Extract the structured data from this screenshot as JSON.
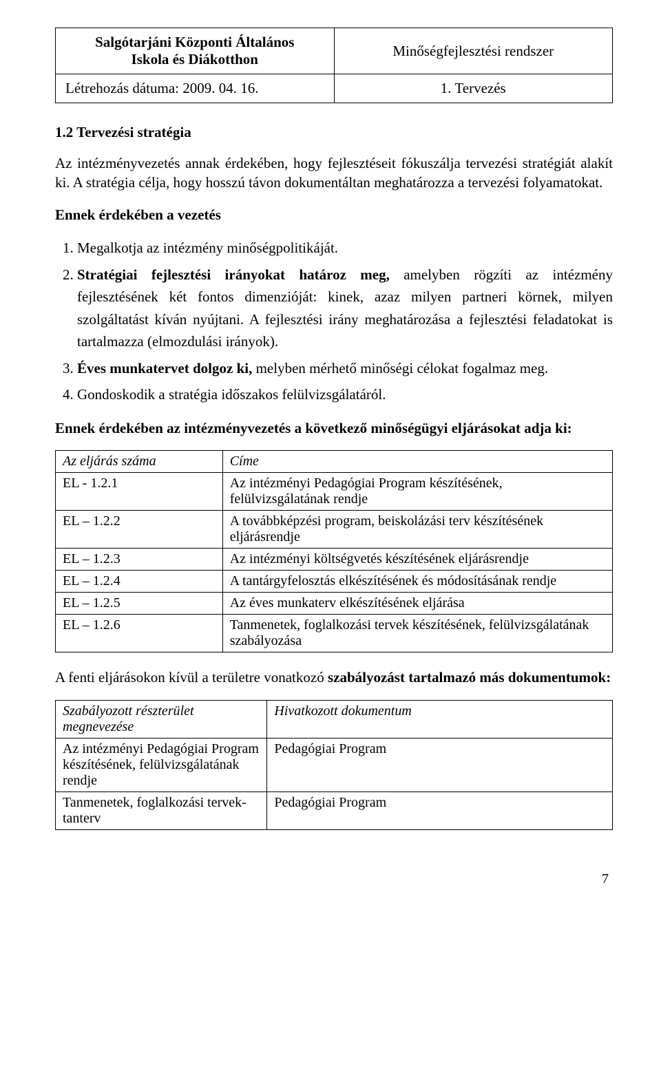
{
  "header": {
    "school_line1": "Salgótarjáni Központi Általános",
    "school_line2": "Iskola és Diákotthon",
    "system": "Minőségfejlesztési rendszer",
    "date_label": "Létrehozás dátuma: 2009. 04. 16.",
    "chapter": "1. Tervezés"
  },
  "section_title": "1.2 Tervezési stratégia",
  "intro_p1": "Az intézményvezetés annak érdekében, hogy fejlesztéseit fókuszálja tervezési stratégiát alakít ki. A stratégia célja, hogy hosszú távon dokumentáltan meghatározza a tervezési folyamatokat.",
  "lead1": "Ennek érdekében a vezetés",
  "list_items": [
    "Megalkotja az intézmény minőségpolitikáját.",
    "Stratégiai fejlesztési irányokat határoz meg, amelyben rögzíti az intézmény fejlesztésének két fontos dimenzióját: kinek, azaz milyen partneri körnek, milyen szolgáltatást kíván nyújtani. A fejlesztési irány meghatározása a fejlesztési feladatokat is tartalmazza (elmozdulási irányok).",
    "Éves munkatervet dolgoz ki, melyben mérhető minőségi célokat fogalmaz meg.",
    "Gondoskodik a stratégia időszakos felülvizsgálatáról."
  ],
  "list_item2_bold": "Stratégiai fejlesztési irányokat határoz meg,",
  "list_item2_rest": " amelyben rögzíti az intézmény fejlesztésének két fontos dimenzióját: kinek, azaz milyen partneri körnek, milyen szolgáltatást kíván nyújtani. A fejlesztési irány meghatározása a fejlesztési feladatokat is tartalmazza (elmozdulási irányok).",
  "list_item3_bold": "Éves munkatervet dolgoz ki,",
  "list_item3_rest": " melyben mérhető minőségi célokat fogalmaz meg.",
  "lead2_pre": "Ennek érdekében az intézményvezetés a következő ",
  "lead2_post": "minőségügyi eljárásokat adja ki:",
  "proc_table": {
    "col1": "Az eljárás száma",
    "col2": "Címe",
    "rows": [
      [
        "EL - 1.2.1",
        "Az intézményi Pedagógiai Program készítésének, felülvizsgálatának rendje"
      ],
      [
        "EL – 1.2.2",
        "A továbbképzési program, beiskolázási terv készítésének eljárásrendje"
      ],
      [
        "EL – 1.2.3",
        "Az intézményi költségvetés készítésének eljárásrendje"
      ],
      [
        "EL – 1.2.4",
        "A tantárgyfelosztás elkészítésének és módosításának rendje"
      ],
      [
        "EL – 1.2.5",
        "Az éves munkaterv elkészítésének eljárása"
      ],
      [
        "EL – 1.2.6",
        "Tanmenetek, foglalkozási tervek készítésének, felülvizsgálatának szabályozása"
      ]
    ]
  },
  "docs_lead_pre": "A fenti eljárásokon kívül a területre vonatkozó ",
  "docs_lead_bold": "szabályozást tartalmazó más dokumentumok:",
  "docs_table": {
    "col1_line1": "Szabályozott részterület",
    "col1_line2": "megnevezése",
    "col2": "Hivatkozott dokumentum",
    "rows": [
      [
        "Az intézményi Pedagógiai Program készítésének, felülvizsgálatának rendje",
        "Pedagógiai Program"
      ],
      [
        "Tanmenetek, foglalkozási tervek-tanterv",
        "Pedagógiai Program"
      ]
    ]
  },
  "page_number": "7"
}
